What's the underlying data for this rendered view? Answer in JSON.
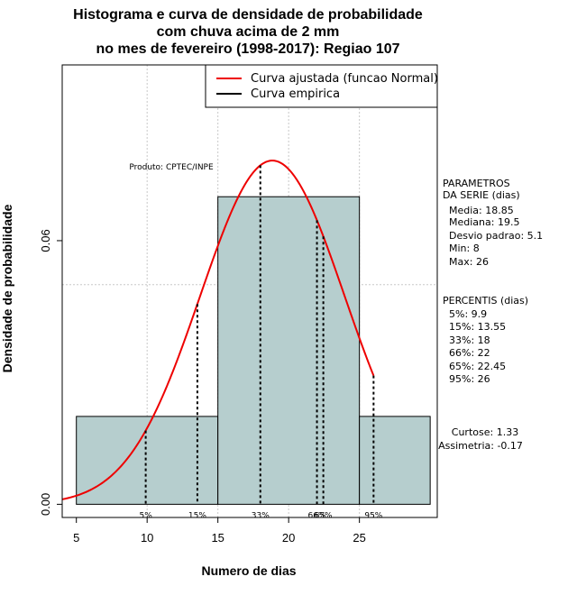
{
  "chart_data": {
    "type": "histogram",
    "title_lines": [
      "Histograma e curva de densidade de probabilidade",
      "com chuva acima de 2 mm",
      "no mes de fevereiro (1998-2017): Regiao 107"
    ],
    "xlabel": "Numero de dias",
    "ylabel": "Densidade de probabilidade",
    "xlim": [
      4,
      30.5
    ],
    "ylim": [
      -0.003,
      0.1
    ],
    "x_ticks": [
      5,
      10,
      15,
      20,
      25
    ],
    "y_ticks": [
      0.0,
      0.06
    ],
    "y_tick_labels": [
      "0.00",
      "0.06"
    ],
    "grid": true,
    "grid_x": [
      10,
      15,
      20,
      25
    ],
    "grid_y": [
      0.05,
      0.1
    ],
    "bars": [
      {
        "x0": 5,
        "x1": 15,
        "density": 0.02
      },
      {
        "x0": 15,
        "x1": 25,
        "density": 0.07
      },
      {
        "x0": 25,
        "x1": 30,
        "density": 0.02
      }
    ],
    "bar_color": "#b6cece",
    "normal_curve": {
      "mean": 18.85,
      "sd": 5.1,
      "from": 4,
      "to": 26,
      "color": "#ee0000"
    },
    "legend": {
      "position": "top-right",
      "entries": [
        {
          "label": "Curva ajustada (funcao Normal)",
          "color": "#ee0000"
        },
        {
          "label": "Curva empirica",
          "color": "#000000"
        }
      ]
    },
    "percentiles": [
      {
        "label": "5%",
        "x": 9.9
      },
      {
        "label": "15%",
        "x": 13.55
      },
      {
        "label": "33%",
        "x": 18
      },
      {
        "label": "66%",
        "x": 22
      },
      {
        "label": "65%",
        "x": 22.45
      },
      {
        "label": "95%",
        "x": 26
      }
    ],
    "product_label": "Produto: CPTEC/INPE"
  },
  "parametros": {
    "heading_lines": [
      "PARAMETROS",
      "DA SERIE (dias)"
    ],
    "lines": [
      "Media: 18.85",
      "Mediana: 19.5",
      "Desvio padrao: 5.1",
      "Min: 8",
      "Max: 26"
    ]
  },
  "percentis_panel": {
    "heading": "PERCENTIS (dias)",
    "lines": [
      "5%: 9.9",
      "15%: 13.55",
      "33%: 18",
      "66%: 22",
      "65%: 22.45",
      "95%: 26"
    ]
  },
  "stats": {
    "lines": [
      "Curtose: 1.33",
      "Assimetria: -0.17"
    ]
  }
}
